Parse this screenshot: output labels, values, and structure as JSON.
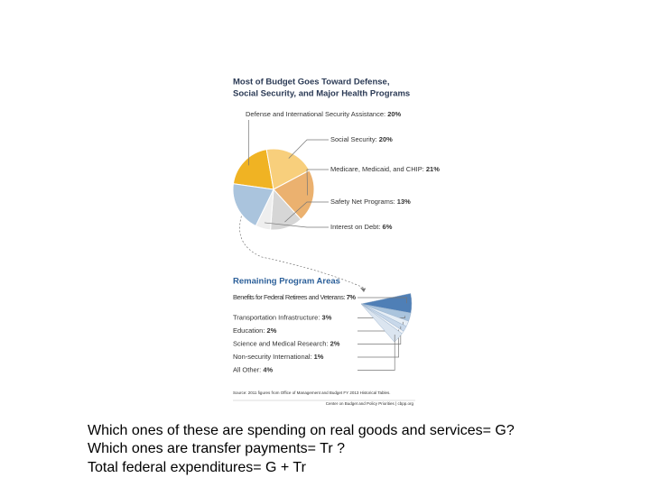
{
  "chart_data": [
    {
      "type": "pie",
      "title": [
        "Most of Budget Goes Toward Defense,",
        "Social Security, and Major Health Programs"
      ],
      "categories": [
        "Defense and International Security Assistance:",
        "Social Security:",
        "Medicare, Medicaid, and CHIP:",
        "Safety Net Programs:",
        "Interest on Debt:",
        null
      ],
      "values": [
        20,
        20,
        21,
        13,
        6,
        20
      ],
      "value_labels": [
        "20%",
        "20%",
        "21%",
        "13%",
        "6%",
        null
      ],
      "colors": [
        "#f0b323",
        "#f8cf7c",
        "#ebb16f",
        "#d6d6d6",
        "#eeeeee",
        "#aac4dd"
      ]
    },
    {
      "type": "fan",
      "title": "Remaining Program Areas",
      "categories": [
        "Benefits for Federal Retirees and Veterans:",
        "Transportation Infrastructure:",
        "Education:",
        "Science and Medical Research:",
        "Non-security International:",
        "All Other:"
      ],
      "values": [
        7,
        3,
        2,
        2,
        1,
        4
      ],
      "value_labels": [
        "7%",
        "3%",
        "2%",
        "2%",
        "1%",
        "4%"
      ],
      "colors": [
        "#4f7fb6",
        "#aac4dd",
        "#e6eef6",
        "#c8d8ea",
        "#f2f5f9",
        "#dbe5f0"
      ]
    }
  ],
  "source": "Source: 2011 figures from Office of Management and Budget FY 2013 Historical Tables.",
  "credit": "Center on Budget and Policy Priorities | cbpp.org",
  "slide_text": [
    "Which ones of these are spending on real goods and services= G?",
    "Which ones are transfer payments= Tr ?",
    "Total federal expenditures= G + Tr"
  ]
}
